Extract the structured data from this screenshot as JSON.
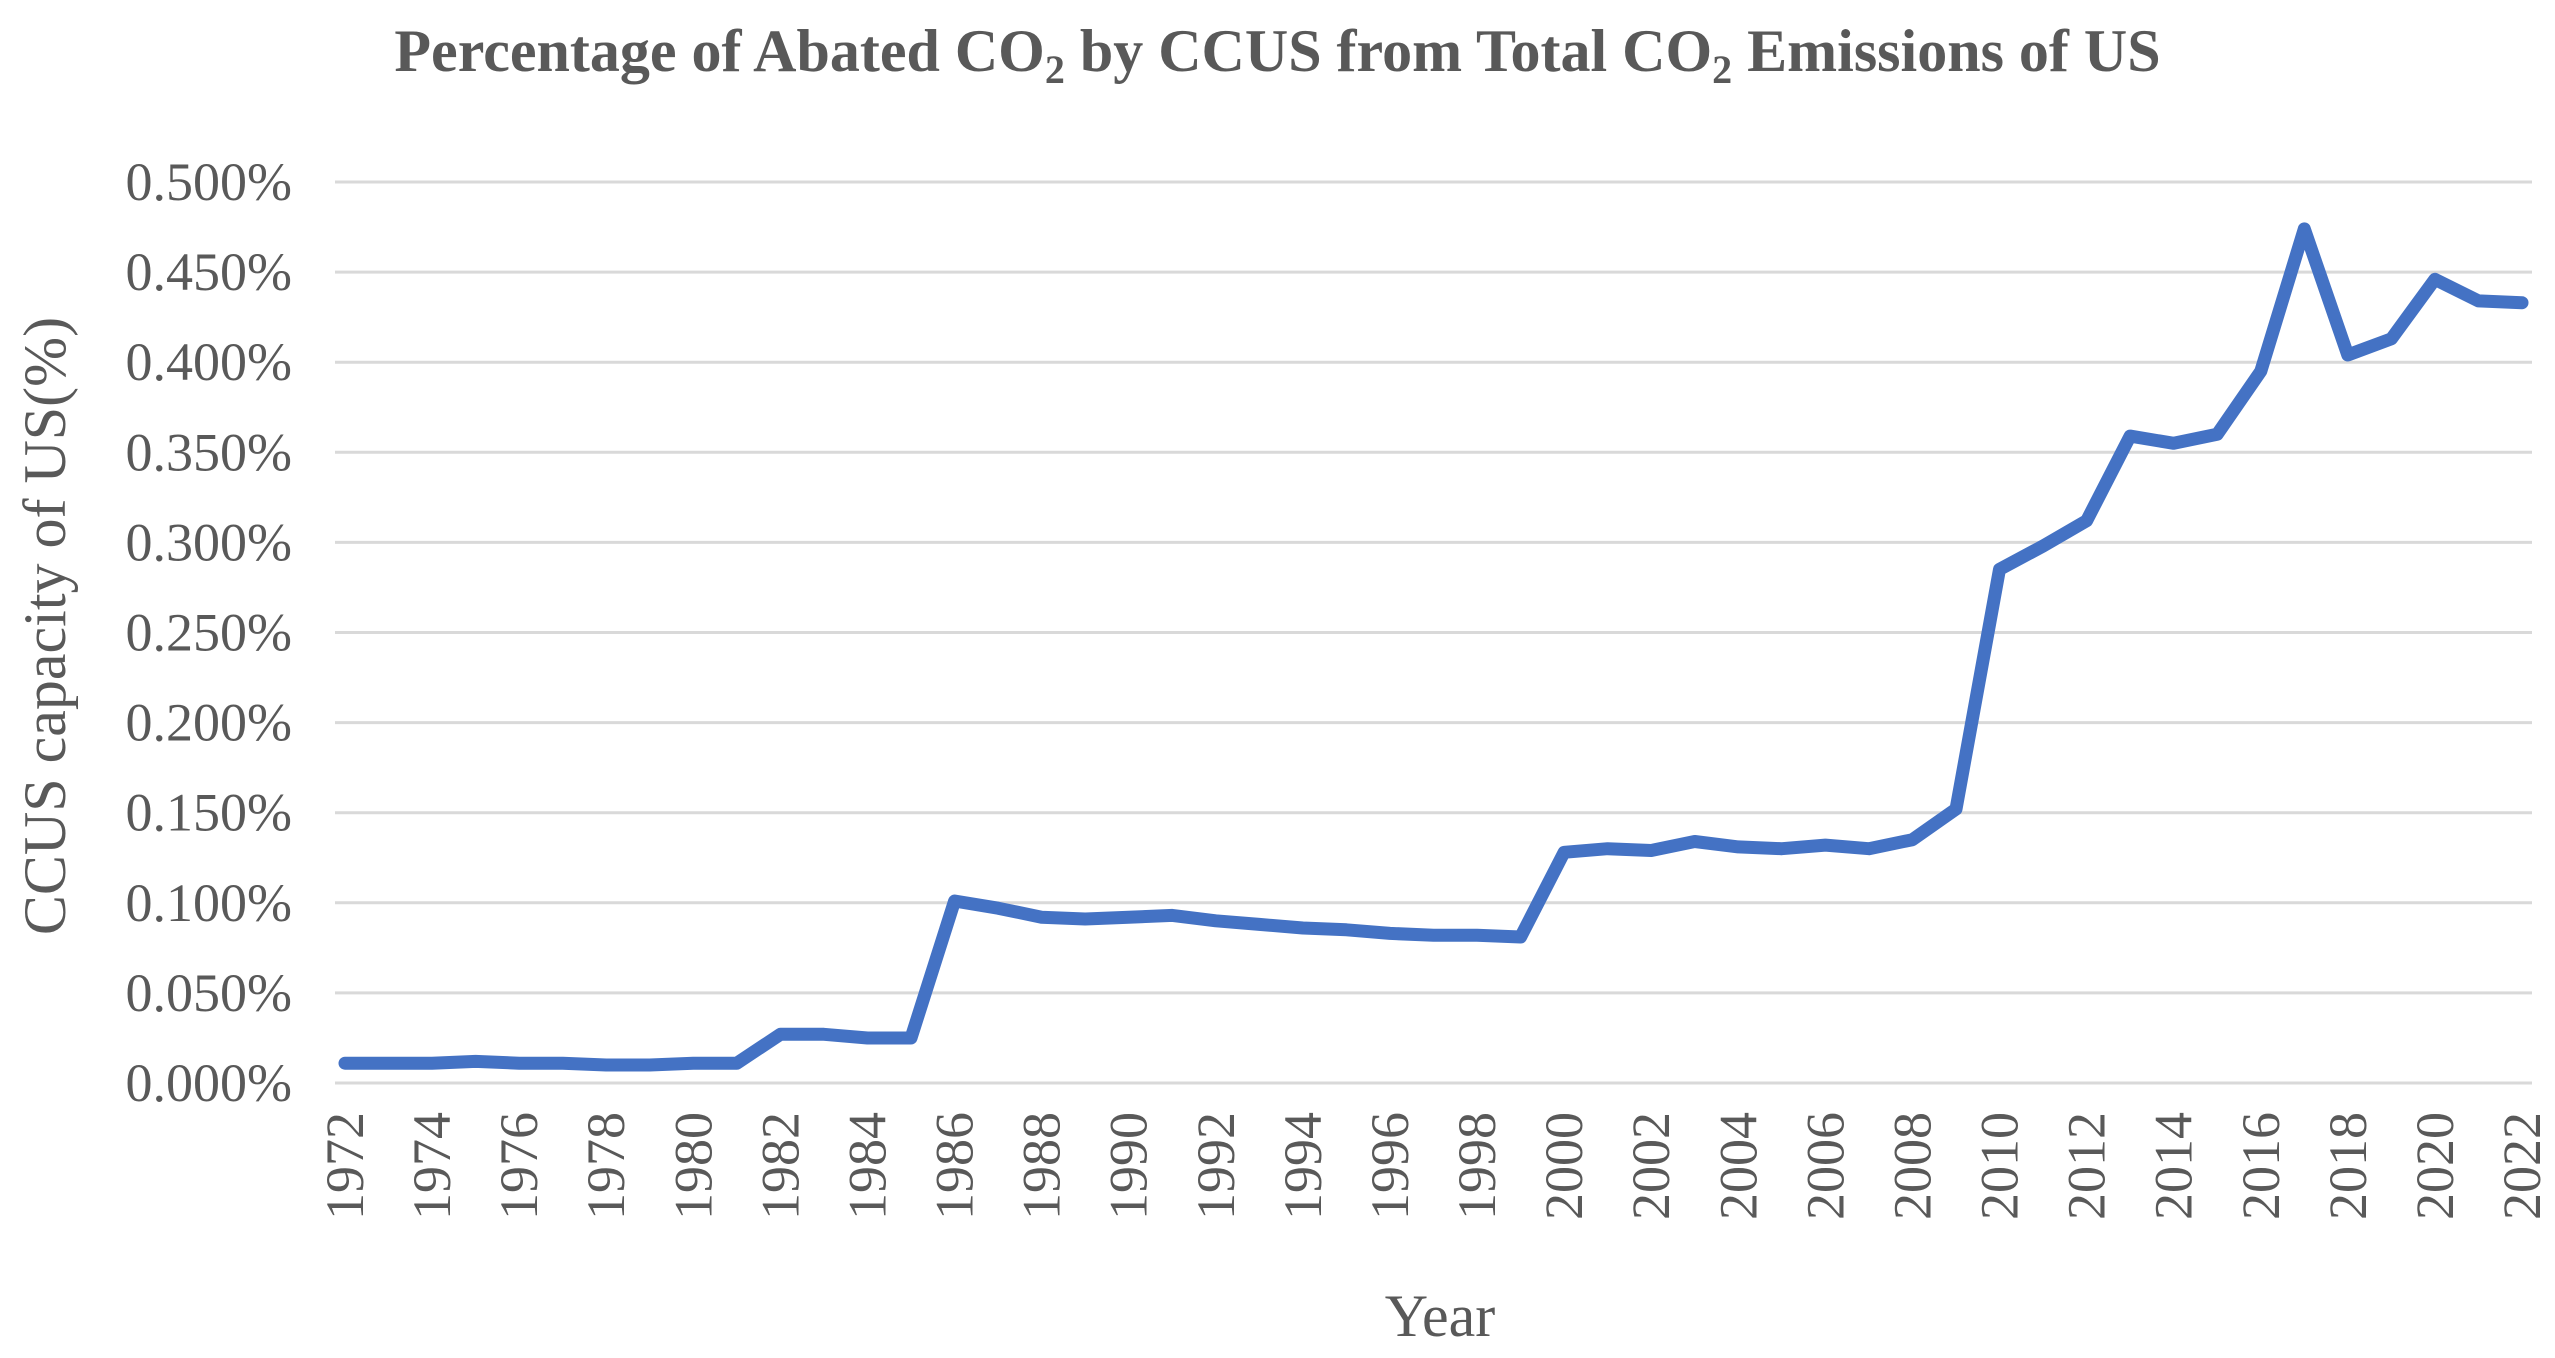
{
  "chart_data": {
    "type": "line",
    "title": "Percentage of Abated CO2 by CCUS from Total CO2 Emissions of US",
    "title_parts": {
      "part1": "Percentage of Abated CO",
      "sub1": "2",
      "part2": " by CCUS from Total CO",
      "sub2": "2",
      "part3": " Emissions of US"
    },
    "xlabel": "Year",
    "ylabel": "CCUS capacity of US(%)",
    "ylim": [
      0,
      0.5
    ],
    "y_ticks": [
      0,
      0.05,
      0.1,
      0.15,
      0.2,
      0.25,
      0.3,
      0.35,
      0.4,
      0.45,
      0.5
    ],
    "y_tick_labels": [
      "0.000%",
      "0.050%",
      "0.100%",
      "0.150%",
      "0.200%",
      "0.250%",
      "0.300%",
      "0.350%",
      "0.400%",
      "0.450%",
      "0.500%"
    ],
    "x_tick_labels": [
      "1972",
      "1974",
      "1976",
      "1978",
      "1980",
      "1982",
      "1984",
      "1986",
      "1988",
      "1990",
      "1992",
      "1994",
      "1996",
      "1998",
      "2000",
      "2002",
      "2004",
      "2006",
      "2008",
      "2010",
      "2012",
      "2014",
      "2016",
      "2018",
      "2020",
      "2022"
    ],
    "grid": true,
    "legend": "none",
    "series": [
      {
        "name": "CCUS capacity of US(%)",
        "color": "#4472c4",
        "x": [
          1972,
          1973,
          1974,
          1975,
          1976,
          1977,
          1978,
          1979,
          1980,
          1981,
          1982,
          1983,
          1984,
          1985,
          1986,
          1987,
          1988,
          1989,
          1990,
          1991,
          1992,
          1993,
          1994,
          1995,
          1996,
          1997,
          1998,
          1999,
          2000,
          2001,
          2002,
          2003,
          2004,
          2005,
          2006,
          2007,
          2008,
          2009,
          2010,
          2011,
          2012,
          2013,
          2014,
          2015,
          2016,
          2017,
          2018,
          2019,
          2020,
          2021,
          2022
        ],
        "values": [
          0.011,
          0.011,
          0.011,
          0.012,
          0.011,
          0.011,
          0.01,
          0.01,
          0.011,
          0.011,
          0.027,
          0.027,
          0.025,
          0.025,
          0.101,
          0.097,
          0.092,
          0.091,
          0.092,
          0.093,
          0.09,
          0.088,
          0.086,
          0.085,
          0.083,
          0.082,
          0.082,
          0.081,
          0.128,
          0.13,
          0.129,
          0.134,
          0.131,
          0.13,
          0.132,
          0.13,
          0.135,
          0.152,
          0.285,
          0.298,
          0.312,
          0.359,
          0.355,
          0.36,
          0.395,
          0.474,
          0.404,
          0.413,
          0.446,
          0.434,
          0.433
        ]
      }
    ]
  }
}
